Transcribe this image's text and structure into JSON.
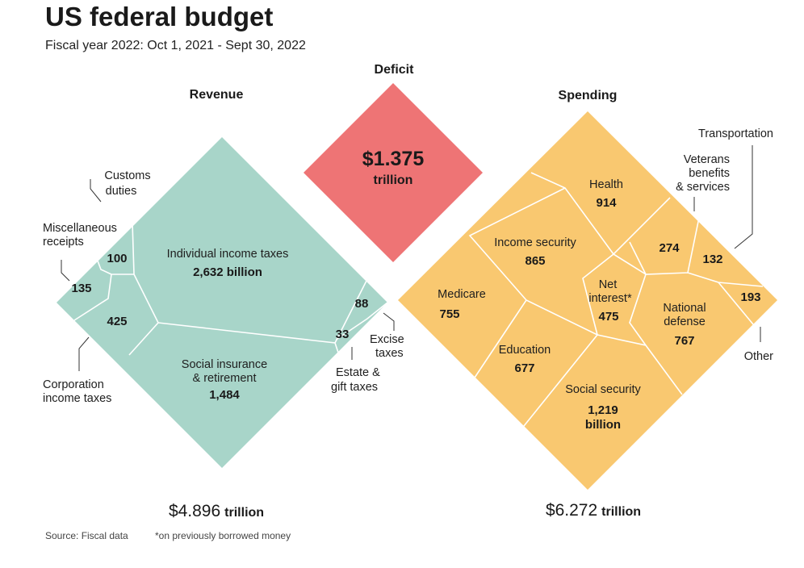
{
  "title": "US federal budget",
  "subtitle": "Fiscal year 2022: Oct 1, 2021 - Sept 30, 2022",
  "chart_data": {
    "type": "voronoi-treemap",
    "unit": "billion USD",
    "revenue": {
      "heading": "Revenue",
      "total_value": "$4.896",
      "total_unit": "trillion",
      "items": [
        {
          "key": "individual",
          "lines": [
            "Individual income taxes"
          ],
          "value": 2632,
          "value_label": "2,632 billion"
        },
        {
          "key": "social",
          "lines": [
            "Social insurance",
            "& retirement"
          ],
          "value": 1484,
          "value_label": "1,484"
        },
        {
          "key": "corporation",
          "lines": [
            "Corporation",
            "income taxes"
          ],
          "value": 425,
          "value_label": "425"
        },
        {
          "key": "misc",
          "lines": [
            "Miscellaneous",
            "receipts"
          ],
          "value": 135,
          "value_label": "135"
        },
        {
          "key": "customs",
          "lines": [
            "Customs",
            "duties"
          ],
          "value": 100,
          "value_label": "100"
        },
        {
          "key": "excise",
          "lines": [
            "Excise",
            "taxes"
          ],
          "value": 88,
          "value_label": "88"
        },
        {
          "key": "estate",
          "lines": [
            "Estate &",
            "gift taxes"
          ],
          "value": 33,
          "value_label": "33"
        }
      ]
    },
    "deficit": {
      "heading": "Deficit",
      "value": "$1.375",
      "unit": "trillion"
    },
    "spending": {
      "heading": "Spending",
      "total_value": "$6.272",
      "total_unit": "trillion",
      "items": [
        {
          "key": "social_security",
          "lines": [
            "Social security"
          ],
          "value": 1219,
          "value_label": "1,219",
          "value_label2": "billion"
        },
        {
          "key": "health",
          "lines": [
            "Health"
          ],
          "value": 914,
          "value_label": "914"
        },
        {
          "key": "income_security",
          "lines": [
            "Income security"
          ],
          "value": 865,
          "value_label": "865"
        },
        {
          "key": "defense",
          "lines": [
            "National",
            "defense"
          ],
          "value": 767,
          "value_label": "767"
        },
        {
          "key": "medicare",
          "lines": [
            "Medicare"
          ],
          "value": 755,
          "value_label": "755"
        },
        {
          "key": "education",
          "lines": [
            "Education"
          ],
          "value": 677,
          "value_label": "677"
        },
        {
          "key": "interest",
          "lines": [
            "Net",
            "interest*"
          ],
          "value": 475,
          "value_label": "475"
        },
        {
          "key": "veterans",
          "lines": [
            "Veterans",
            "benefits",
            "& services"
          ],
          "value": 274,
          "value_label": "274"
        },
        {
          "key": "other",
          "lines": [
            "Other"
          ],
          "value": 193,
          "value_label": "193"
        },
        {
          "key": "transportation",
          "lines": [
            "Transportation"
          ],
          "value": 132,
          "value_label": "132"
        }
      ]
    },
    "notes": {
      "source": "Source: Fiscal data",
      "footnote": "*on previously borrowed money"
    },
    "colors": {
      "revenue": "#a8d5c9",
      "spending": "#f9c870",
      "deficit": "#ee7475"
    }
  }
}
